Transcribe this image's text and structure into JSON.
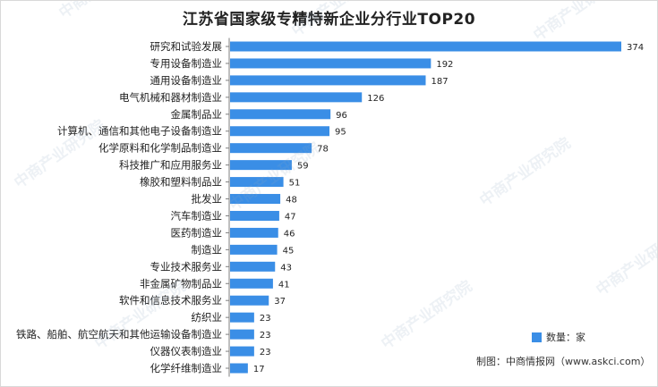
{
  "chart_data": {
    "type": "bar",
    "orientation": "horizontal",
    "title": "江苏省国家级专精特新企业分行业TOP20",
    "categories": [
      "研究和试验发展",
      "专用设备制造业",
      "通用设备制造业",
      "电气机械和器材制造业",
      "金属制品业",
      "计算机、通信和其他电子设备制造业",
      "化学原料和化学制品制造业",
      "科技推广和应用服务业",
      "橡胶和塑料制品业",
      "批发业",
      "汽车制造业",
      "医药制造业",
      "制造业",
      "专业技术服务业",
      "非金属矿物制品业",
      "软件和信息技术服务业",
      "纺织业",
      "铁路、船舶、航空航天和其他运输设备制造业",
      "仪器仪表制造业",
      "化学纤维制造业"
    ],
    "series": [
      {
        "name": "数量：家",
        "values": [
          374,
          192,
          187,
          126,
          96,
          95,
          78,
          59,
          51,
          48,
          47,
          46,
          45,
          43,
          41,
          37,
          23,
          23,
          23,
          17
        ]
      }
    ],
    "xlim": [
      0,
      374
    ],
    "grid": false,
    "data_labels": true,
    "legend_position": "bottom-right",
    "bar_color": "#3a8ee6"
  },
  "source": "制图：中商情报网（www.askci.com）",
  "watermark": "中商产业研究院"
}
